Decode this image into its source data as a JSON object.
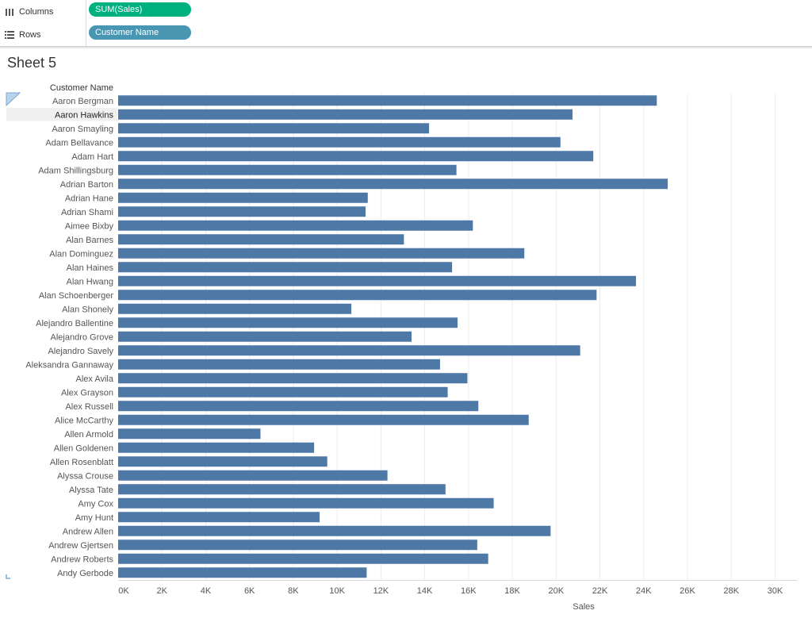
{
  "shelves": {
    "columns": {
      "label": "Columns",
      "pill": "SUM(Sales)",
      "pill_color": "#00b180"
    },
    "rows": {
      "label": "Rows",
      "pill": "Customer Name",
      "pill_color": "#4996b2"
    }
  },
  "sheet_title": "Sheet 5",
  "colors": {
    "bar": "#4e79a7",
    "grid": "#ececec",
    "highlight_row": "#f0f0f0"
  },
  "selected_row": "Aaron Hawkins",
  "chart_data": {
    "type": "bar",
    "orientation": "horizontal",
    "row_header": "Customer Name",
    "xlabel": "Sales",
    "xlim": [
      0,
      31000
    ],
    "x_ticks": [
      0,
      2000,
      4000,
      6000,
      8000,
      10000,
      12000,
      14000,
      16000,
      18000,
      20000,
      22000,
      24000,
      26000,
      28000,
      30000
    ],
    "x_tick_labels": [
      "0K",
      "2K",
      "4K",
      "6K",
      "8K",
      "10K",
      "12K",
      "14K",
      "16K",
      "18K",
      "20K",
      "22K",
      "24K",
      "26K",
      "28K",
      "30K"
    ],
    "grid": true,
    "categories": [
      "Aaron Bergman",
      "Aaron Hawkins",
      "Aaron Smayling",
      "Adam Bellavance",
      "Adam Hart",
      "Adam Shillingsburg",
      "Adrian Barton",
      "Adrian Hane",
      "Adrian Shami",
      "Aimee Bixby",
      "Alan Barnes",
      "Alan Dominguez",
      "Alan Haines",
      "Alan Hwang",
      "Alan Schoenberger",
      "Alan Shonely",
      "Alejandro Ballentine",
      "Alejandro Grove",
      "Alejandro Savely",
      "Aleksandra Gannaway",
      "Alex Avila",
      "Alex Grayson",
      "Alex Russell",
      "Alice McCarthy",
      "Allen Armold",
      "Allen Goldenen",
      "Allen Rosenblatt",
      "Alyssa Crouse",
      "Alyssa Tate",
      "Amy Cox",
      "Amy Hunt",
      "Andrew Allen",
      "Andrew Gjertsen",
      "Andrew Roberts",
      "Andy Gerbode"
    ],
    "values": [
      24600,
      20750,
      14200,
      20200,
      21700,
      15450,
      25100,
      11400,
      11300,
      16200,
      13050,
      18550,
      15250,
      23650,
      21850,
      10650,
      15500,
      13400,
      21100,
      14700,
      15950,
      15050,
      16450,
      18750,
      6500,
      8950,
      9550,
      12300,
      14950,
      17150,
      9200,
      19750,
      16400,
      16900,
      11350
    ]
  }
}
